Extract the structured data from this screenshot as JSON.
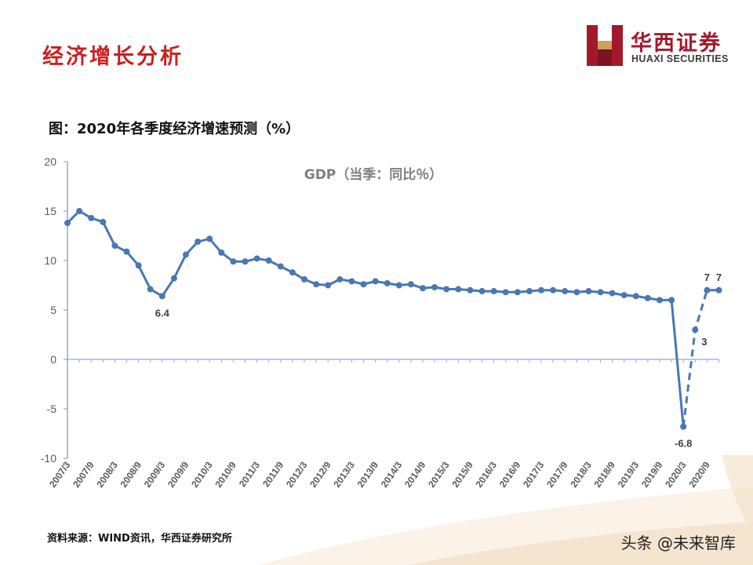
{
  "slide": {
    "title": "经济增长分析",
    "logo_cn": "华西证券",
    "logo_en": "HUAXI SECURITIES",
    "figure_title": "图：2020年各季度经济增速预测（%）",
    "source": "资料来源：WIND资讯，华西证券研究所",
    "watermark": "头条 @未来智库"
  },
  "colors": {
    "title": "#cc1f1f",
    "series": "#4a77b4",
    "axis": "#8faadc",
    "logo": "#a3192c"
  },
  "chart_data": {
    "type": "line",
    "title": "GDP（当季：同比％）",
    "ylim": [
      -10,
      20
    ],
    "yticks": [
      20,
      15,
      10,
      5,
      0,
      -5,
      -10
    ],
    "xtick_labels": [
      "2007/3",
      "2007/9",
      "2008/3",
      "2008/9",
      "2009/3",
      "2009/9",
      "2010/3",
      "2010/9",
      "2011/3",
      "2011/9",
      "2012/3",
      "2012/9",
      "2013/3",
      "2013/9",
      "2014/3",
      "2014/9",
      "2015/3",
      "2015/9",
      "2016/3",
      "2016/9",
      "2017/3",
      "2017/9",
      "2018/3",
      "2018/9",
      "2019/3",
      "2019/9",
      "2020/3",
      "2020/9"
    ],
    "series": [
      {
        "style": "solid",
        "x": [
          "2007/3",
          "2007/6",
          "2007/9",
          "2007/12",
          "2008/3",
          "2008/6",
          "2008/9",
          "2008/12",
          "2009/3",
          "2009/6",
          "2009/9",
          "2009/12",
          "2010/3",
          "2010/6",
          "2010/9",
          "2010/12",
          "2011/3",
          "2011/6",
          "2011/9",
          "2011/12",
          "2012/3",
          "2012/6",
          "2012/9",
          "2012/12",
          "2013/3",
          "2013/6",
          "2013/9",
          "2013/12",
          "2014/3",
          "2014/6",
          "2014/9",
          "2014/12",
          "2015/3",
          "2015/6",
          "2015/9",
          "2015/12",
          "2016/3",
          "2016/6",
          "2016/9",
          "2016/12",
          "2017/3",
          "2017/6",
          "2017/9",
          "2017/12",
          "2018/3",
          "2018/6",
          "2018/9",
          "2018/12",
          "2019/3",
          "2019/6",
          "2019/9",
          "2019/12",
          "2020/3"
        ],
        "values": [
          13.8,
          15.0,
          14.3,
          13.9,
          11.5,
          10.9,
          9.5,
          7.1,
          6.4,
          8.2,
          10.6,
          11.9,
          12.2,
          10.8,
          9.9,
          9.9,
          10.2,
          10.0,
          9.4,
          8.8,
          8.1,
          7.6,
          7.5,
          8.1,
          7.9,
          7.6,
          7.9,
          7.7,
          7.5,
          7.6,
          7.2,
          7.3,
          7.1,
          7.1,
          7.0,
          6.9,
          6.9,
          6.8,
          6.8,
          6.9,
          7.0,
          7.0,
          6.9,
          6.8,
          6.9,
          6.8,
          6.7,
          6.5,
          6.4,
          6.2,
          6.0,
          6.0,
          -6.8
        ]
      },
      {
        "style": "dashed",
        "x": [
          "2020/3",
          "2020/6",
          "2020/9",
          "2020/12"
        ],
        "values": [
          -6.8,
          3.0,
          7.0,
          7.0
        ]
      }
    ],
    "annotations": [
      {
        "x": "2009/3",
        "text": "6.4",
        "value": 6.4,
        "place": "below"
      },
      {
        "x": "2020/3",
        "text": "-6.8",
        "value": -6.8,
        "place": "below"
      },
      {
        "x": "2020/6",
        "text": "3",
        "value": 3,
        "place": "right"
      },
      {
        "x": "2020/9",
        "text": "7",
        "value": 7,
        "place": "above"
      },
      {
        "x": "2020/12",
        "text": "7",
        "value": 7,
        "place": "above"
      }
    ]
  }
}
